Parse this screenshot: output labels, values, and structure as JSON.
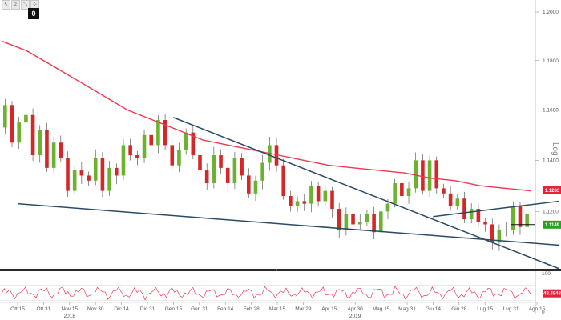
{
  "toolbar": {
    "buttons": [
      {
        "name": "draw-pointer-icon",
        "glyph": "↖"
      },
      {
        "name": "zoom-tool-icon",
        "glyph": "z"
      },
      {
        "name": "zoom-out-icon",
        "glyph": "⤡"
      },
      {
        "name": "crosshair-icon",
        "glyph": "⊹"
      }
    ],
    "badge": "0"
  },
  "price_panel": {
    "scale_label": "Log",
    "current_price": "1.1149",
    "sma_value": "1.1283",
    "current_price_color": "#2ca02c",
    "sma_color": "#e8213a"
  },
  "oscillator": {
    "upper": "100",
    "lower": "0",
    "current_value": "48.4848",
    "color": "#e8213a"
  },
  "colors": {
    "up_candle": "#6bb32e",
    "down_candle": "#d62728",
    "sma": "#f0354f",
    "trendline": "#2a4a66",
    "grid": "#dddddd"
  },
  "chart_data": {
    "type": "candlestick",
    "y_scale": "log",
    "ylim": [
      1.098,
      1.205
    ],
    "y_ticks": [
      "1.2000",
      "1.1800",
      "1.1600",
      "1.1400",
      "1.1200"
    ],
    "x_ticks": [
      "Ott 15",
      "Ott 31",
      "Nov 15",
      "Nov 30",
      "Dic 14",
      "Dic 31",
      "Gen 15",
      "Gen 31",
      "Feb 14",
      "Feb 28",
      "Mar 15",
      "Mar 29",
      "Apr 15",
      "Apr 30",
      "Mag 15",
      "Mag 31",
      "Giu 14",
      "Giu 28",
      "Lug 15",
      "Lug 31",
      "Ago 15"
    ],
    "x_years": [
      {
        "label": "2018",
        "at": "Nov 15"
      },
      {
        "label": "2019",
        "at": "Apr 30"
      }
    ],
    "close_path": [
      1.153,
      1.162,
      1.147,
      1.155,
      1.158,
      1.142,
      1.152,
      1.137,
      1.147,
      1.141,
      1.128,
      1.136,
      1.134,
      1.132,
      1.141,
      1.128,
      1.137,
      1.134,
      1.146,
      1.142,
      1.141,
      1.15,
      1.146,
      1.156,
      1.146,
      1.138,
      1.144,
      1.151,
      1.142,
      1.136,
      1.131,
      1.142,
      1.137,
      1.131,
      1.141,
      1.134,
      1.127,
      1.132,
      1.139,
      1.146,
      1.138,
      1.126,
      1.122,
      1.124,
      1.123,
      1.13,
      1.124,
      1.128,
      1.121,
      1.113,
      1.119,
      1.115,
      1.116,
      1.119,
      1.112,
      1.12,
      1.123,
      1.131,
      1.126,
      1.129,
      1.14,
      1.128,
      1.14,
      1.129,
      1.127,
      1.122,
      1.125,
      1.117,
      1.121,
      1.116,
      1.115,
      1.108,
      1.113,
      1.113,
      1.122,
      1.114,
      1.119
    ],
    "sma_200": [
      1.188,
      1.184,
      1.178,
      1.172,
      1.166,
      1.16,
      1.156,
      1.152,
      1.148,
      1.146,
      1.144,
      1.142,
      1.14,
      1.138,
      1.137,
      1.136,
      1.135,
      1.133,
      1.132,
      1.13,
      1.129,
      1.128
    ],
    "trendlines": [
      {
        "from": [
          "Gen 15",
          1.157
        ],
        "to": [
          "Ago 15",
          1.098
        ]
      },
      {
        "from": [
          "Ott 15",
          1.123
        ],
        "to": [
          "Ago 15",
          1.107
        ]
      },
      {
        "from": [
          "Giu 14",
          1.118
        ],
        "to": [
          "Ago 15",
          1.124
        ]
      }
    ],
    "last_price": 1.1149,
    "sma_last": 1.1283,
    "oscillator_last": 48.4848
  }
}
